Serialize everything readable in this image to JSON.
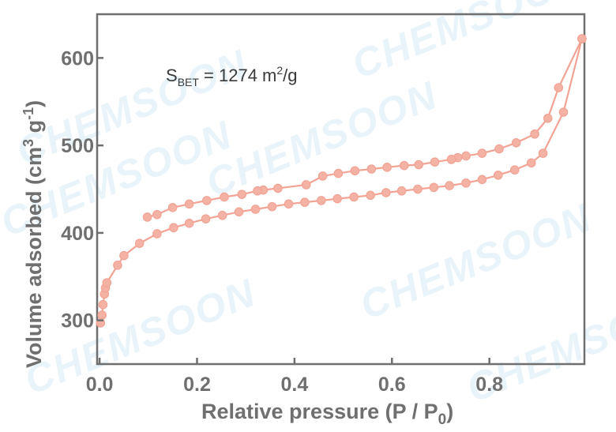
{
  "watermark": "CHEMSOON",
  "chart_data": {
    "type": "line",
    "title": "",
    "annotation": {
      "s_label": "S",
      "s_sub": "BET",
      "eq_text": " = 1274 m",
      "sup": "2",
      "unit_tail": "/g"
    },
    "xlabel": {
      "main": "Relative pressure (P / P",
      "sub": "0",
      "tail": ")"
    },
    "ylabel": {
      "main": "Volume adsorbed (cm",
      "sup1": "3",
      "mid": " g",
      "sup2": "-1",
      "tail": ")"
    },
    "xlim": [
      -0.005,
      0.995
    ],
    "ylim": [
      250,
      650
    ],
    "xticks": [
      0.0,
      0.2,
      0.4,
      0.6,
      0.8
    ],
    "xtick_labels": [
      "0.0",
      "0.2",
      "0.4",
      "0.6",
      "0.8"
    ],
    "yticks": [
      300,
      400,
      500,
      600
    ],
    "ytick_labels": [
      "300",
      "400",
      "500",
      "600"
    ],
    "grid": false,
    "colors": {
      "series": "#f2a394",
      "marker_fill": "#f4b2a4",
      "axis": "#6f6f6f"
    },
    "series": [
      {
        "values_x": [
          0.002,
          0.005,
          0.007,
          0.01,
          0.012,
          0.015,
          0.037,
          0.05,
          0.082,
          0.118,
          0.152,
          0.184,
          0.218,
          0.252,
          0.286,
          0.32,
          0.354,
          0.388,
          0.421,
          0.455,
          0.488,
          0.522,
          0.556,
          0.588,
          0.62,
          0.653,
          0.686,
          0.718,
          0.752,
          0.785,
          0.818,
          0.852,
          0.886,
          0.91,
          0.952,
          0.99
        ],
        "values_y": [
          297,
          306,
          318,
          330,
          337,
          343,
          363,
          374,
          388,
          399,
          406,
          411,
          416,
          420,
          424,
          427,
          430,
          433,
          435,
          437,
          439,
          441,
          443,
          446,
          448,
          450,
          452,
          454,
          457,
          461,
          466,
          472,
          480,
          491,
          538,
          622
        ]
      },
      {
        "values_x": [
          0.99,
          0.942,
          0.92,
          0.893,
          0.855,
          0.82,
          0.785,
          0.752,
          0.735,
          0.722,
          0.688,
          0.655,
          0.625,
          0.59,
          0.558,
          0.524,
          0.49,
          0.458,
          0.424,
          0.366,
          0.336,
          0.324,
          0.292,
          0.256,
          0.22,
          0.184,
          0.15,
          0.118,
          0.098
        ],
        "values_y": [
          622,
          566,
          531,
          513,
          503,
          496,
          491,
          488,
          486,
          484,
          481,
          478,
          477,
          475,
          473,
          471,
          468,
          465,
          455,
          451,
          449,
          448,
          444,
          441,
          437,
          433,
          429,
          421,
          418
        ]
      }
    ]
  }
}
